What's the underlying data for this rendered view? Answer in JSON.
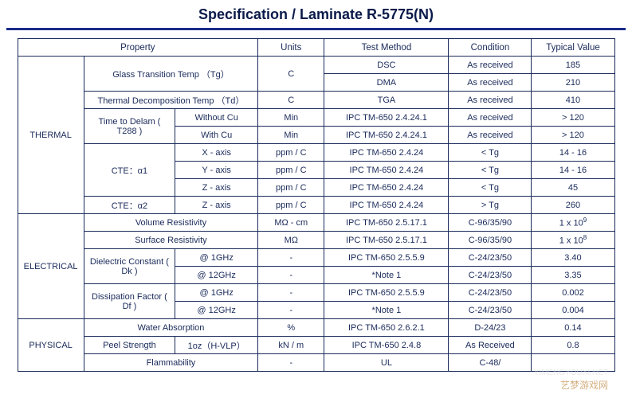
{
  "title": "Specification  /  Laminate R-5775(N)",
  "headers": {
    "property": "Property",
    "units": "Units",
    "test_method": "Test Method",
    "condition": "Condition",
    "typical_value": "Typical Value"
  },
  "categories": {
    "thermal": "THERMAL",
    "electrical": "ELECTRICAL",
    "physical": "PHYSICAL"
  },
  "rows": {
    "tg": {
      "label": "Glass Transition Temp  （Tg）",
      "units": "C"
    },
    "tg_dsc": {
      "tm": "DSC",
      "cond": "As received",
      "val": "185"
    },
    "tg_dma": {
      "tm": "DMA",
      "cond": "As received",
      "val": "210"
    },
    "td": {
      "label": "Thermal Decomposition Temp （Td）",
      "units": "C",
      "tm": "TGA",
      "cond": "As received",
      "val": "410"
    },
    "t288": {
      "label": "Time to Delam ( T288 )"
    },
    "t288_wo": {
      "sub": "Without Cu",
      "units": "Min",
      "tm": "IPC TM-650 2.4.24.1",
      "cond": "As received",
      "val": "> 120"
    },
    "t288_w": {
      "sub": "With Cu",
      "units": "Min",
      "tm": "IPC TM-650 2.4.24.1",
      "cond": "As received",
      "val": "> 120"
    },
    "cte1": {
      "label": "CTE：α1"
    },
    "cte1_x": {
      "sub": "X - axis",
      "units": "ppm / C",
      "tm": "IPC TM-650 2.4.24",
      "cond": "< Tg",
      "val": "14  -  16"
    },
    "cte1_y": {
      "sub": "Y - axis",
      "units": "ppm / C",
      "tm": "IPC TM-650 2.4.24",
      "cond": "< Tg",
      "val": "14  -  16"
    },
    "cte1_z": {
      "sub": "Z - axis",
      "units": "ppm / C",
      "tm": "IPC TM-650 2.4.24",
      "cond": "< Tg",
      "val": "45"
    },
    "cte2": {
      "label": "CTE：α2",
      "sub": "Z - axis",
      "units": "ppm / C",
      "tm": "IPC TM-650 2.4.24",
      "cond": "> Tg",
      "val": "260"
    },
    "vr": {
      "label": "Volume Resistivity",
      "units": "MΩ - cm",
      "tm": "IPC TM-650 2.5.17.1",
      "cond": "C-96/35/90",
      "val_pre": "1 x 10",
      "val_sup": "9"
    },
    "sr": {
      "label": "Surface Resistivity",
      "units": "MΩ",
      "tm": "IPC TM-650 2.5.17.1",
      "cond": "C-96/35/90",
      "val_pre": "1 x 10",
      "val_sup": "8"
    },
    "dk": {
      "label": "Dielectric Constant ( Dk )"
    },
    "dk1": {
      "sub": "@ 1GHz",
      "units": "-",
      "tm": "IPC TM-650 2.5.5.9",
      "cond": "C-24/23/50",
      "val": "3.40"
    },
    "dk12": {
      "sub": "@ 12GHz",
      "units": "-",
      "tm": "*Note 1",
      "cond": "C-24/23/50",
      "val": "3.35"
    },
    "df": {
      "label": "Dissipation Factor ( Df )"
    },
    "df1": {
      "sub": "@ 1GHz",
      "units": "-",
      "tm": "IPC TM-650 2.5.5.9",
      "cond": "C-24/23/50",
      "val": "0.002"
    },
    "df12": {
      "sub": "@ 12GHz",
      "units": "-",
      "tm": "*Note 1",
      "cond": "C-24/23/50",
      "val": "0.004"
    },
    "wa": {
      "label": "Water Absorption",
      "units": "%",
      "tm": "IPC TM-650 2.6.2.1",
      "cond": "D-24/23",
      "val": "0.14"
    },
    "ps": {
      "label": "Peel Strength",
      "sub": "1oz（H-VLP）",
      "units": "kN / m",
      "tm": "IPC TM-650 2.4.8",
      "cond": "As Received",
      "val": "0.8"
    },
    "fl": {
      "label": "Flammability",
      "units": "-",
      "tm": "UL",
      "cond": "C-48/",
      "val": ""
    }
  },
  "watermark": "艺梦游戏网",
  "watermark2": "YIMENGYOUXI.NET"
}
